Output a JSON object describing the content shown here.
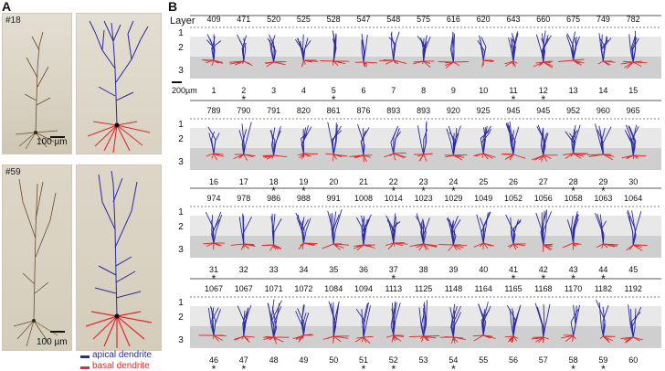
{
  "panel_a": {
    "letter": "A",
    "neuron_top_tag": "#18",
    "neuron_bottom_tag": "#59",
    "scale_top": "100 µm",
    "scale_bottom": "100 µm",
    "legend": [
      {
        "label": "apical dendrite",
        "color": "#2a2aa0"
      },
      {
        "label": "basal dendrite",
        "color": "#e42a2a"
      }
    ]
  },
  "panel_b": {
    "letter": "B",
    "layer_header": "Layer",
    "layer_labels": [
      "1",
      "2",
      "3"
    ],
    "scale_label": "200µm",
    "colors": {
      "apical": "#2a2aa0",
      "basal": "#e42a2a",
      "layer1": "#ffffff",
      "layer2": "#e8e8e8",
      "layer3": "#cfcfcf"
    },
    "rows": [
      {
        "depths": [
          "409",
          "471",
          "520",
          "525",
          "528",
          "547",
          "548",
          "575",
          "616",
          "620",
          "643",
          "660",
          "675",
          "749",
          "782"
        ],
        "ids": [
          "1",
          "2",
          "3",
          "4",
          "5",
          "6",
          "7",
          "8",
          "9",
          "10",
          "11",
          "12",
          "13",
          "14",
          "15"
        ],
        "stars": [
          false,
          true,
          false,
          false,
          true,
          false,
          false,
          false,
          false,
          false,
          true,
          true,
          false,
          false,
          false
        ]
      },
      {
        "depths": [
          "789",
          "790",
          "791",
          "820",
          "861",
          "876",
          "893",
          "893",
          "920",
          "925",
          "945",
          "945",
          "952",
          "960",
          "965"
        ],
        "ids": [
          "16",
          "17",
          "18",
          "19",
          "20",
          "21",
          "22",
          "23",
          "24",
          "25",
          "26",
          "27",
          "28",
          "29",
          "30"
        ],
        "stars": [
          false,
          false,
          true,
          true,
          false,
          false,
          true,
          true,
          true,
          false,
          false,
          false,
          true,
          true,
          false
        ]
      },
      {
        "depths": [
          "974",
          "978",
          "986",
          "988",
          "991",
          "1008",
          "1014",
          "1023",
          "1029",
          "1049",
          "1052",
          "1056",
          "1058",
          "1063",
          "1064"
        ],
        "ids": [
          "31",
          "32",
          "33",
          "34",
          "35",
          "36",
          "37",
          "38",
          "39",
          "40",
          "41",
          "42",
          "43",
          "44",
          "45"
        ],
        "stars": [
          true,
          false,
          false,
          false,
          false,
          false,
          true,
          false,
          false,
          false,
          true,
          true,
          true,
          true,
          false
        ]
      },
      {
        "depths": [
          "1067",
          "1067",
          "1071",
          "1072",
          "1084",
          "1094",
          "1113",
          "1125",
          "1148",
          "1164",
          "1165",
          "1168",
          "1170",
          "1182",
          "1192"
        ],
        "ids": [
          "46",
          "47",
          "48",
          "49",
          "50",
          "51",
          "52",
          "53",
          "54",
          "55",
          "56",
          "57",
          "58",
          "59",
          "60"
        ],
        "stars": [
          true,
          true,
          false,
          false,
          false,
          true,
          true,
          false,
          true,
          false,
          false,
          false,
          true,
          true,
          false
        ]
      }
    ],
    "star_glyph": "*"
  }
}
